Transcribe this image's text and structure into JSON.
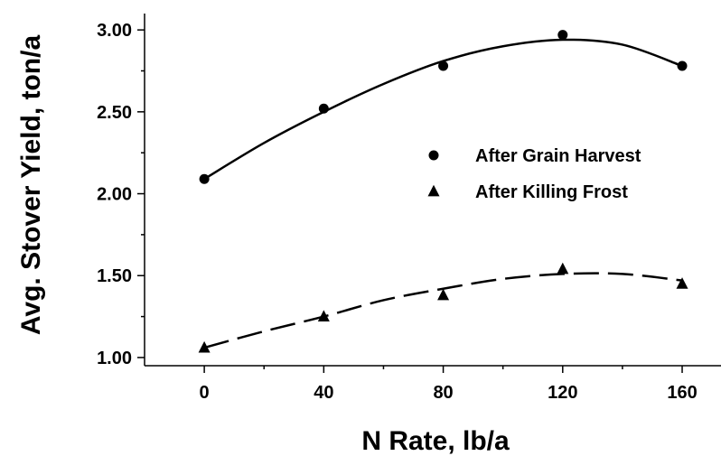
{
  "chart_data": {
    "type": "scatter",
    "xlabel": "N Rate, lb/a",
    "ylabel": "Avg. Stover Yield, ton/a",
    "xlim": [
      -20,
      173
    ],
    "ylim": [
      0.95,
      3.1
    ],
    "x_ticks": [
      0,
      40,
      80,
      120,
      160
    ],
    "x_tick_labels": [
      "0",
      "40",
      "80",
      "120",
      "160"
    ],
    "y_ticks": [
      1.0,
      1.5,
      2.0,
      2.5,
      3.0
    ],
    "y_tick_labels": [
      "1.00",
      "1.50",
      "2.00",
      "2.50",
      "3.00"
    ],
    "grid": false,
    "legend_position": "right",
    "series": [
      {
        "name": "After Grain Harvest",
        "marker": "circle",
        "line_style": "solid",
        "x": [
          0,
          40,
          80,
          120,
          160
        ],
        "y": [
          2.09,
          2.52,
          2.78,
          2.97,
          2.78
        ],
        "fit_curve": {
          "x": [
            0,
            20,
            40,
            60,
            80,
            100,
            120,
            140,
            160
          ],
          "y": [
            2.09,
            2.31,
            2.5,
            2.67,
            2.81,
            2.9,
            2.94,
            2.91,
            2.78
          ]
        }
      },
      {
        "name": "After Killing Frost",
        "marker": "triangle",
        "line_style": "dashed",
        "x": [
          0,
          40,
          80,
          120,
          160
        ],
        "y": [
          1.06,
          1.25,
          1.38,
          1.54,
          1.45
        ],
        "fit_curve": {
          "x": [
            0,
            20,
            40,
            60,
            80,
            100,
            120,
            140,
            160
          ],
          "y": [
            1.06,
            1.16,
            1.25,
            1.35,
            1.42,
            1.48,
            1.51,
            1.51,
            1.47
          ]
        }
      }
    ]
  }
}
